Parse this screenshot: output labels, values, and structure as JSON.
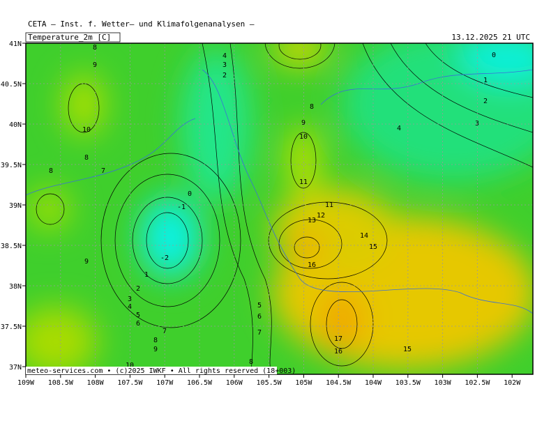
{
  "header": {
    "source": "CETA — Inst. f. Wetter— und Klimafolgenanalysen —",
    "variable": "Temperature_2m [C]",
    "timestamp": "13.12.2025 21 UTC"
  },
  "axes": {
    "lon_labels": [
      "109W",
      "108.5W",
      "108W",
      "107.5W",
      "107W",
      "106.5W",
      "106W",
      "105.5W",
      "105W",
      "104.5W",
      "104W",
      "103.5W",
      "103W",
      "102.5W",
      "102W"
    ],
    "lat_labels": [
      "41N",
      "40.5N",
      "40N",
      "39.5N",
      "39N",
      "38.5N",
      "38N",
      "37.5N",
      "37N"
    ]
  },
  "contour_labels": [
    "8",
    "9",
    "10",
    "8",
    "8",
    "7",
    "9",
    "4",
    "3",
    "2",
    "8",
    "9",
    "10",
    "11",
    "0",
    "-1",
    "-2",
    "1",
    "2",
    "3",
    "4",
    "5",
    "6",
    "7",
    "8",
    "9",
    "10",
    "5",
    "6",
    "7",
    "8",
    "11",
    "12",
    "13",
    "14",
    "15",
    "16",
    "17",
    "16",
    "15",
    "0",
    "1",
    "2",
    "3",
    "4"
  ],
  "footer": {
    "credit": "meteo-services.com • (c)2025 IWKF • All rights reserved (18+003)"
  }
}
